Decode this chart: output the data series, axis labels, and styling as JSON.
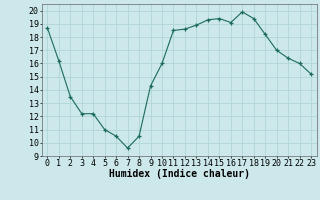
{
  "x": [
    0,
    1,
    2,
    3,
    4,
    5,
    6,
    7,
    8,
    9,
    10,
    11,
    12,
    13,
    14,
    15,
    16,
    17,
    18,
    19,
    20,
    21,
    22,
    23
  ],
  "y": [
    18.7,
    16.2,
    13.5,
    12.2,
    12.2,
    11.0,
    10.5,
    9.6,
    10.5,
    14.3,
    16.0,
    18.5,
    18.6,
    18.9,
    19.3,
    19.4,
    19.1,
    19.9,
    19.4,
    18.2,
    17.0,
    16.4,
    16.0,
    15.2
  ],
  "xlabel": "Humidex (Indice chaleur)",
  "ylim": [
    9,
    20.5
  ],
  "xlim": [
    -0.5,
    23.5
  ],
  "yticks": [
    9,
    10,
    11,
    12,
    13,
    14,
    15,
    16,
    17,
    18,
    19,
    20
  ],
  "xticks": [
    0,
    1,
    2,
    3,
    4,
    5,
    6,
    7,
    8,
    9,
    10,
    11,
    12,
    13,
    14,
    15,
    16,
    17,
    18,
    19,
    20,
    21,
    22,
    23
  ],
  "line_color": "#1a6b5a",
  "marker": "+",
  "bg_color": "#cce8ea",
  "grid_color": "#b0d4d8",
  "xlabel_fontsize": 7,
  "tick_fontsize": 6
}
